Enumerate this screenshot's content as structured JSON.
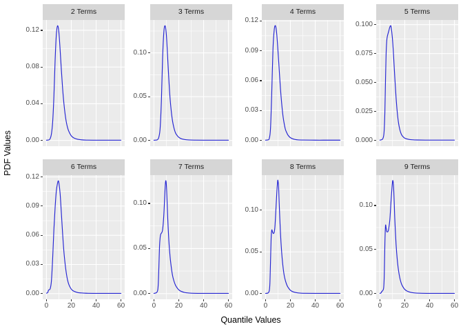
{
  "chart_data": {
    "type": "line",
    "title": "",
    "xlabel": "Quantile Values",
    "ylabel": "PDF Values",
    "legend": "none",
    "grid": "on",
    "line_color": "#2323D2",
    "panel_bg": "#EBEBEB",
    "strip_bg": "#D6D6D6",
    "strip_text_color": "#1A1A1A",
    "tick_label_color": "#4D4D4D",
    "xlim": [
      -3,
      63
    ],
    "x_ticks": {
      "values": [
        0,
        20,
        40,
        60
      ],
      "labels": [
        "0",
        "20",
        "40",
        "60"
      ]
    },
    "facets": [
      {
        "label": "2 Terms",
        "y_ticks": {
          "values": [
            0,
            0.04,
            0.08,
            0.12
          ],
          "labels": [
            "0.00",
            "0.04",
            "0.08",
            "0.12"
          ]
        },
        "ylim": [
          -0.00625,
          0.13125
        ],
        "points": [
          [
            0,
            0.0003
          ],
          [
            2,
            0.0006
          ],
          [
            3,
            0.002
          ],
          [
            4,
            0.007
          ],
          [
            5,
            0.02
          ],
          [
            6,
            0.048
          ],
          [
            7,
            0.088
          ],
          [
            8,
            0.116
          ],
          [
            9,
            0.125
          ],
          [
            10,
            0.118
          ],
          [
            11,
            0.099
          ],
          [
            12,
            0.077
          ],
          [
            13,
            0.057
          ],
          [
            14,
            0.041
          ],
          [
            15,
            0.029
          ],
          [
            16,
            0.02
          ],
          [
            17,
            0.014
          ],
          [
            18,
            0.01
          ],
          [
            20,
            0.005
          ],
          [
            22,
            0.0028
          ],
          [
            25,
            0.0013
          ],
          [
            28,
            0.0007
          ],
          [
            32,
            0.0004
          ],
          [
            40,
            0.0003
          ],
          [
            50,
            0.0003
          ],
          [
            60,
            0.0003
          ]
        ]
      },
      {
        "label": "3 Terms",
        "y_ticks": {
          "values": [
            0,
            0.05,
            0.1
          ],
          "labels": [
            "0.00",
            "0.05",
            "0.10"
          ]
        },
        "ylim": [
          -0.00655,
          0.1376
        ],
        "points": [
          [
            0,
            0.0003
          ],
          [
            2,
            0.0005
          ],
          [
            3,
            0.001
          ],
          [
            4,
            0.004
          ],
          [
            5,
            0.014
          ],
          [
            6,
            0.045
          ],
          [
            7,
            0.095
          ],
          [
            8,
            0.124
          ],
          [
            9,
            0.131
          ],
          [
            10,
            0.121
          ],
          [
            11,
            0.096
          ],
          [
            12,
            0.07
          ],
          [
            13,
            0.048
          ],
          [
            14,
            0.033
          ],
          [
            15,
            0.022
          ],
          [
            16,
            0.015
          ],
          [
            17,
            0.01
          ],
          [
            18,
            0.007
          ],
          [
            20,
            0.0036
          ],
          [
            22,
            0.002
          ],
          [
            25,
            0.001
          ],
          [
            28,
            0.0006
          ],
          [
            32,
            0.0004
          ],
          [
            40,
            0.0003
          ],
          [
            50,
            0.0003
          ],
          [
            60,
            0.0003
          ]
        ]
      },
      {
        "label": "4 Terms",
        "y_ticks": {
          "values": [
            0,
            0.03,
            0.06,
            0.09,
            0.12
          ],
          "labels": [
            "0.00",
            "0.03",
            "0.06",
            "0.09",
            "0.12"
          ]
        },
        "ylim": [
          -0.00575,
          0.1208
        ],
        "points": [
          [
            0,
            0.0003
          ],
          [
            2,
            0.0006
          ],
          [
            3,
            0.002
          ],
          [
            4,
            0.012
          ],
          [
            5,
            0.048
          ],
          [
            6,
            0.092
          ],
          [
            7,
            0.111
          ],
          [
            8,
            0.115
          ],
          [
            9,
            0.107
          ],
          [
            10,
            0.09
          ],
          [
            11,
            0.071
          ],
          [
            12,
            0.052
          ],
          [
            13,
            0.037
          ],
          [
            14,
            0.025
          ],
          [
            15,
            0.017
          ],
          [
            16,
            0.011
          ],
          [
            17,
            0.008
          ],
          [
            18,
            0.0055
          ],
          [
            20,
            0.0028
          ],
          [
            23,
            0.0012
          ],
          [
            26,
            0.0006
          ],
          [
            30,
            0.0004
          ],
          [
            40,
            0.0003
          ],
          [
            50,
            0.0003
          ],
          [
            60,
            0.0003
          ]
        ]
      },
      {
        "label": "5 Terms",
        "y_ticks": {
          "values": [
            0,
            0.025,
            0.05,
            0.075,
            0.1
          ],
          "labels": [
            "0.000",
            "0.025",
            "0.050",
            "0.075",
            "0.100"
          ]
        },
        "ylim": [
          -0.00495,
          0.104
        ],
        "points": [
          [
            0,
            0.0003
          ],
          [
            2,
            0.001
          ],
          [
            3,
            0.004
          ],
          [
            3.5,
            0.01
          ],
          [
            4,
            0.025
          ],
          [
            4.5,
            0.052
          ],
          [
            5,
            0.075
          ],
          [
            5.5,
            0.086
          ],
          [
            6,
            0.09
          ],
          [
            7,
            0.094
          ],
          [
            8,
            0.098
          ],
          [
            8.5,
            0.099
          ],
          [
            9,
            0.098
          ],
          [
            10,
            0.089
          ],
          [
            11,
            0.073
          ],
          [
            12,
            0.054
          ],
          [
            13,
            0.037
          ],
          [
            14,
            0.024
          ],
          [
            15,
            0.015
          ],
          [
            16,
            0.0095
          ],
          [
            17,
            0.006
          ],
          [
            18,
            0.004
          ],
          [
            20,
            0.002
          ],
          [
            23,
            0.001
          ],
          [
            26,
            0.0006
          ],
          [
            30,
            0.0004
          ],
          [
            40,
            0.0003
          ],
          [
            50,
            0.0003
          ],
          [
            60,
            0.0003
          ]
        ]
      },
      {
        "label": "6 Terms",
        "y_ticks": {
          "values": [
            0,
            0.03,
            0.06,
            0.09,
            0.12
          ],
          "labels": [
            "0.00",
            "0.03",
            "0.06",
            "0.09",
            "0.12"
          ]
        },
        "ylim": [
          -0.0058,
          0.1218
        ],
        "points": [
          [
            0,
            0.0005
          ],
          [
            1,
            0.001
          ],
          [
            1.5,
            0.003
          ],
          [
            2,
            0.004
          ],
          [
            3,
            0.005
          ],
          [
            4,
            0.013
          ],
          [
            5,
            0.036
          ],
          [
            6,
            0.066
          ],
          [
            7,
            0.089
          ],
          [
            8,
            0.106
          ],
          [
            9,
            0.114
          ],
          [
            9.5,
            0.116
          ],
          [
            10,
            0.114
          ],
          [
            11,
            0.103
          ],
          [
            12,
            0.083
          ],
          [
            13,
            0.062
          ],
          [
            14,
            0.044
          ],
          [
            15,
            0.031
          ],
          [
            16,
            0.021
          ],
          [
            17,
            0.014
          ],
          [
            18,
            0.0095
          ],
          [
            20,
            0.0046
          ],
          [
            22,
            0.0025
          ],
          [
            25,
            0.0012
          ],
          [
            28,
            0.0007
          ],
          [
            32,
            0.0004
          ],
          [
            40,
            0.0003
          ],
          [
            50,
            0.0003
          ],
          [
            60,
            0.0003
          ]
        ]
      },
      {
        "label": "7 Terms",
        "y_ticks": {
          "values": [
            0,
            0.05,
            0.1
          ],
          "labels": [
            "0.00",
            "0.05",
            "0.10"
          ]
        },
        "ylim": [
          -0.00625,
          0.1313
        ],
        "points": [
          [
            0,
            0.0003
          ],
          [
            2,
            0.001
          ],
          [
            3,
            0.0035
          ],
          [
            3.5,
            0.011
          ],
          [
            4,
            0.03
          ],
          [
            4.5,
            0.052
          ],
          [
            5,
            0.062
          ],
          [
            5.5,
            0.066
          ],
          [
            6,
            0.067
          ],
          [
            7,
            0.071
          ],
          [
            8,
            0.088
          ],
          [
            9,
            0.117
          ],
          [
            9.5,
            0.125
          ],
          [
            10,
            0.121
          ],
          [
            10.5,
            0.106
          ],
          [
            11,
            0.087
          ],
          [
            12,
            0.059
          ],
          [
            13,
            0.041
          ],
          [
            14,
            0.029
          ],
          [
            15,
            0.02
          ],
          [
            16,
            0.0145
          ],
          [
            17,
            0.0105
          ],
          [
            18,
            0.0077
          ],
          [
            20,
            0.0042
          ],
          [
            22,
            0.0025
          ],
          [
            25,
            0.0012
          ],
          [
            28,
            0.0007
          ],
          [
            32,
            0.0004
          ],
          [
            40,
            0.0003
          ],
          [
            50,
            0.0003
          ],
          [
            60,
            0.0003
          ]
        ]
      },
      {
        "label": "8 Terms",
        "y_ticks": {
          "values": [
            0,
            0.05,
            0.1
          ],
          "labels": [
            "0.00",
            "0.05",
            "0.10"
          ]
        },
        "ylim": [
          -0.00675,
          0.1418
        ],
        "points": [
          [
            0,
            0.0003
          ],
          [
            2,
            0.0008
          ],
          [
            3,
            0.0035
          ],
          [
            3.5,
            0.012
          ],
          [
            4,
            0.038
          ],
          [
            4.5,
            0.066
          ],
          [
            5,
            0.076
          ],
          [
            5.5,
            0.0745
          ],
          [
            6,
            0.0725
          ],
          [
            6.5,
            0.072
          ],
          [
            7,
            0.0735
          ],
          [
            7.5,
            0.079
          ],
          [
            8,
            0.091
          ],
          [
            9,
            0.119
          ],
          [
            9.7,
            0.134
          ],
          [
            10,
            0.135
          ],
          [
            10.5,
            0.128
          ],
          [
            11,
            0.108
          ],
          [
            12,
            0.073
          ],
          [
            13,
            0.049
          ],
          [
            14,
            0.033
          ],
          [
            15,
            0.022
          ],
          [
            16,
            0.0155
          ],
          [
            17,
            0.011
          ],
          [
            18,
            0.0078
          ],
          [
            20,
            0.004
          ],
          [
            22,
            0.0023
          ],
          [
            25,
            0.0011
          ],
          [
            28,
            0.0006
          ],
          [
            32,
            0.0004
          ],
          [
            40,
            0.0003
          ],
          [
            50,
            0.0003
          ],
          [
            60,
            0.0003
          ]
        ]
      },
      {
        "label": "9 Terms",
        "y_ticks": {
          "values": [
            0,
            0.05,
            0.1
          ],
          "labels": [
            "0.00",
            "0.05",
            "0.10"
          ]
        },
        "ylim": [
          -0.0064,
          0.1344
        ],
        "points": [
          [
            0,
            0.0003
          ],
          [
            1,
            0.001
          ],
          [
            1.5,
            0.0025
          ],
          [
            2,
            0.003
          ],
          [
            3,
            0.0065
          ],
          [
            3.5,
            0.021
          ],
          [
            4,
            0.057
          ],
          [
            4.5,
            0.077
          ],
          [
            5,
            0.0745
          ],
          [
            5.5,
            0.0705
          ],
          [
            6,
            0.07
          ],
          [
            6.5,
            0.0705
          ],
          [
            7,
            0.073
          ],
          [
            8,
            0.084
          ],
          [
            9,
            0.106
          ],
          [
            10,
            0.125
          ],
          [
            10.5,
            0.128
          ],
          [
            11,
            0.121
          ],
          [
            11.5,
            0.104
          ],
          [
            12,
            0.084
          ],
          [
            13,
            0.056
          ],
          [
            14,
            0.038
          ],
          [
            15,
            0.026
          ],
          [
            16,
            0.018
          ],
          [
            17,
            0.0125
          ],
          [
            18,
            0.009
          ],
          [
            20,
            0.0048
          ],
          [
            22,
            0.0028
          ],
          [
            25,
            0.0014
          ],
          [
            28,
            0.0008
          ],
          [
            32,
            0.0005
          ],
          [
            40,
            0.0003
          ],
          [
            50,
            0.0003
          ],
          [
            60,
            0.0003
          ]
        ]
      }
    ]
  }
}
